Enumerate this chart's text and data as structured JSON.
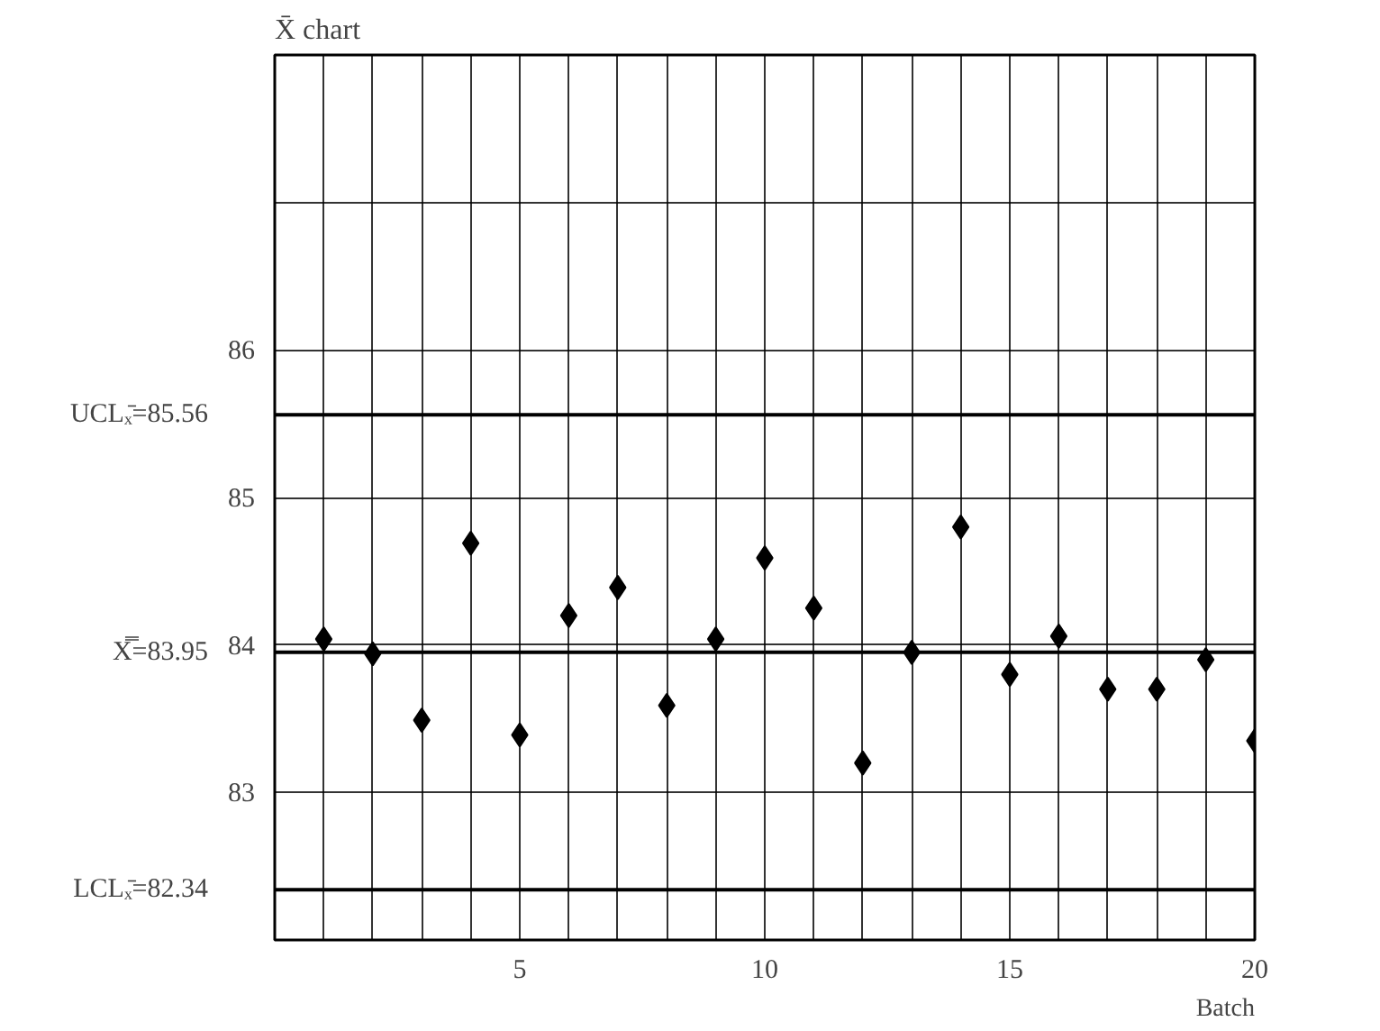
{
  "chart_data": {
    "type": "scatter",
    "title": "X̄ chart",
    "xlabel": "Batch",
    "x": [
      1,
      2,
      3,
      4,
      5,
      6,
      7,
      8,
      9,
      10,
      11,
      12,
      13,
      14,
      15,
      16,
      17,
      18,
      19,
      20
    ],
    "values": [
      84.04,
      83.94,
      83.49,
      84.69,
      83.39,
      84.2,
      84.39,
      83.59,
      84.04,
      84.59,
      84.25,
      83.2,
      83.95,
      84.8,
      83.8,
      84.06,
      83.7,
      83.7,
      83.9,
      83.35
    ],
    "color": "#000000",
    "marker": "diamond",
    "grid": true,
    "xlim": [
      0,
      20
    ],
    "xticks": [
      {
        "value": 1,
        "label": null
      },
      {
        "value": 2,
        "label": null
      },
      {
        "value": 3,
        "label": null
      },
      {
        "value": 4,
        "label": null
      },
      5,
      {
        "value": 6,
        "label": null
      },
      {
        "value": 7,
        "label": null
      },
      {
        "value": 8,
        "label": null
      },
      {
        "value": 9,
        "label": null
      },
      10,
      {
        "value": 11,
        "label": null
      },
      {
        "value": 12,
        "label": null
      },
      {
        "value": 13,
        "label": null
      },
      {
        "value": 14,
        "label": null
      },
      15,
      {
        "value": 16,
        "label": null
      },
      {
        "value": 17,
        "label": null
      },
      {
        "value": 18,
        "label": null
      },
      {
        "value": 19,
        "label": null
      },
      20
    ],
    "ylim": [
      82,
      88
    ],
    "yticks": [
      83,
      84,
      85,
      86,
      {
        "value": 87,
        "label": null
      }
    ],
    "ref_lines": [
      {
        "axis": "y",
        "value": 85.56,
        "label": "UCLₓ̄=85.56",
        "color": "#000000"
      },
      {
        "axis": "y",
        "value": 83.95,
        "label": "X̿=83.95",
        "color": "#000000"
      },
      {
        "axis": "y",
        "value": 82.34,
        "label": "LCLₓ̄=82.34",
        "color": "#000000"
      }
    ]
  }
}
